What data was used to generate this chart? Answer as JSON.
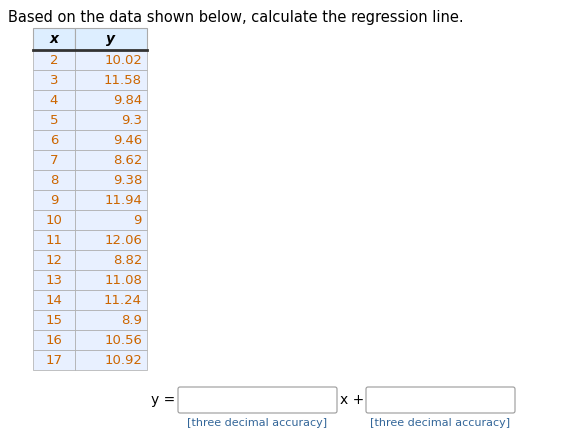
{
  "title": "Based on the data shown below, calculate the regression line.",
  "x_values": [
    2,
    3,
    4,
    5,
    6,
    7,
    8,
    9,
    10,
    11,
    12,
    13,
    14,
    15,
    16,
    17
  ],
  "y_values": [
    10.02,
    11.58,
    9.84,
    9.3,
    9.46,
    8.62,
    9.38,
    11.94,
    9,
    12.06,
    8.82,
    11.08,
    11.24,
    8.9,
    10.56,
    10.92
  ],
  "col_header_x": "x",
  "col_header_y": "y",
  "header_bg": "#ddeeff",
  "header_fg": "#000000",
  "cell_bg": "#e8f0ff",
  "cell_fg": "#cc6600",
  "border_color": "#aaaaaa",
  "thick_border_color": "#333333",
  "title_color": "#000000",
  "title_fontsize": 10.5,
  "cell_fontsize": 9.5,
  "equation_label": "y =",
  "equation_mid": "x +",
  "hint_text": "[three decimal accuracy]",
  "hint_color": "#336699",
  "hint_fontsize": 8.0
}
